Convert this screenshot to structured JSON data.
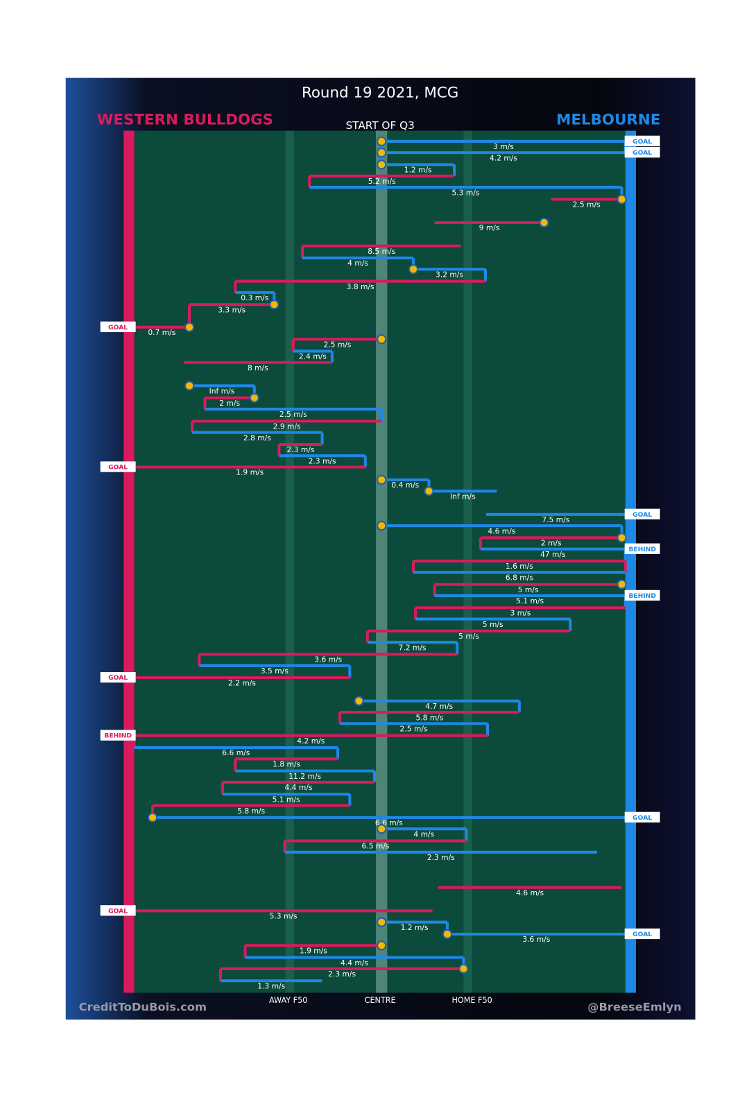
{
  "header": {
    "title": "Round 19 2021, MCG",
    "subtitle": "START OF Q3",
    "home_team": "WESTERN BULLDOGS",
    "away_team": "MELBOURNE",
    "home_color": "#d81b5e",
    "away_color": "#1e88e5"
  },
  "field_labels": [
    "AWAY F50",
    "CENTRE",
    "HOME F50"
  ],
  "credits": [
    "CreditToDuBois.com",
    "@BreeseEmlyn"
  ],
  "possessions": [
    {
      "speed": "3 m/s",
      "color": "#1e88e5",
      "result": "GOAL"
    },
    {
      "speed": "4.2 m/s",
      "color": "#1e88e5",
      "result": "GOAL"
    },
    {
      "speed": "1.2 m/s",
      "color": "#1e88e5"
    },
    {
      "speed": "5.2 m/s",
      "color": "#d81b5e"
    },
    {
      "speed": "5.3 m/s",
      "color": "#1e88e5"
    },
    {
      "speed": "2.5 m/s",
      "color": "#d81b5e"
    },
    {
      "speed": "9 m/s",
      "color": "#d81b5e"
    },
    {
      "speed": "8.5 m/s",
      "color": "#d81b5e"
    },
    {
      "speed": "4 m/s",
      "color": "#1e88e5"
    },
    {
      "speed": "3.2 m/s",
      "color": "#1e88e5"
    },
    {
      "speed": "3.8 m/s",
      "color": "#d81b5e"
    },
    {
      "speed": "0.3 m/s",
      "color": "#1e88e5"
    },
    {
      "speed": "3.3 m/s",
      "color": "#d81b5e"
    },
    {
      "speed": "0.7 m/s",
      "color": "#d81b5e",
      "result": "GOAL"
    },
    {
      "speed": "2.5 m/s",
      "color": "#d81b5e"
    },
    {
      "speed": "2.4 m/s",
      "color": "#1e88e5"
    },
    {
      "speed": "8 m/s",
      "color": "#d81b5e"
    },
    {
      "speed": "Inf m/s",
      "color": "#1e88e5"
    },
    {
      "speed": "2 m/s",
      "color": "#d81b5e"
    },
    {
      "speed": "2.5 m/s",
      "color": "#1e88e5"
    },
    {
      "speed": "2.9 m/s",
      "color": "#d81b5e"
    },
    {
      "speed": "2.8 m/s",
      "color": "#1e88e5"
    },
    {
      "speed": "2.3 m/s",
      "color": "#d81b5e"
    },
    {
      "speed": "2.3 m/s",
      "color": "#1e88e5"
    },
    {
      "speed": "1.9 m/s",
      "color": "#d81b5e",
      "result": "GOAL"
    },
    {
      "speed": "0.4 m/s",
      "color": "#1e88e5"
    },
    {
      "speed": "Inf m/s",
      "color": "#1e88e5"
    },
    {
      "speed": "7.5 m/s",
      "color": "#1e88e5",
      "result": "GOAL"
    },
    {
      "speed": "4.6 m/s",
      "color": "#1e88e5"
    },
    {
      "speed": "2 m/s",
      "color": "#d81b5e"
    },
    {
      "speed": "47 m/s",
      "color": "#1e88e5",
      "result": "BEHIND"
    },
    {
      "speed": "1.6 m/s",
      "color": "#d81b5e"
    },
    {
      "speed": "6.8 m/s",
      "color": "#1e88e5"
    },
    {
      "speed": "5 m/s",
      "color": "#d81b5e"
    },
    {
      "speed": "5.1 m/s",
      "color": "#1e88e5",
      "result": "BEHIND"
    },
    {
      "speed": "3 m/s",
      "color": "#d81b5e"
    },
    {
      "speed": "5 m/s",
      "color": "#1e88e5"
    },
    {
      "speed": "5 m/s",
      "color": "#d81b5e"
    },
    {
      "speed": "7.2 m/s",
      "color": "#1e88e5"
    },
    {
      "speed": "3.6 m/s",
      "color": "#d81b5e"
    },
    {
      "speed": "3.5 m/s",
      "color": "#1e88e5"
    },
    {
      "speed": "2.2 m/s",
      "color": "#d81b5e",
      "result": "GOAL"
    },
    {
      "speed": "4.7 m/s",
      "color": "#1e88e5"
    },
    {
      "speed": "5.8 m/s",
      "color": "#d81b5e"
    },
    {
      "speed": "2.5 m/s",
      "color": "#1e88e5"
    },
    {
      "speed": "4.2 m/s",
      "color": "#d81b5e",
      "result": "BEHIND"
    },
    {
      "speed": "6.6 m/s",
      "color": "#1e88e5"
    },
    {
      "speed": "1.8 m/s",
      "color": "#d81b5e"
    },
    {
      "speed": "11.2 m/s",
      "color": "#1e88e5"
    },
    {
      "speed": "4.4 m/s",
      "color": "#d81b5e"
    },
    {
      "speed": "5.1 m/s",
      "color": "#1e88e5"
    },
    {
      "speed": "5.8 m/s",
      "color": "#d81b5e"
    },
    {
      "speed": "6.6 m/s",
      "color": "#1e88e5",
      "result": "GOAL"
    },
    {
      "speed": "4 m/s",
      "color": "#1e88e5"
    },
    {
      "speed": "6.5 m/s",
      "color": "#d81b5e"
    },
    {
      "speed": "2.3 m/s",
      "color": "#1e88e5"
    },
    {
      "speed": "4.6 m/s",
      "color": "#d81b5e"
    },
    {
      "speed": "5.3 m/s",
      "color": "#d81b5e",
      "result": "GOAL"
    },
    {
      "speed": "1.2 m/s",
      "color": "#1e88e5"
    },
    {
      "speed": "3.6 m/s",
      "color": "#1e88e5",
      "result": "GOAL"
    },
    {
      "speed": "1.9 m/s",
      "color": "#d81b5e"
    },
    {
      "speed": "4.4 m/s",
      "color": "#1e88e5"
    },
    {
      "speed": "2.3 m/s",
      "color": "#d81b5e"
    },
    {
      "speed": "1.3 m/s",
      "color": "#1e88e5"
    }
  ]
}
